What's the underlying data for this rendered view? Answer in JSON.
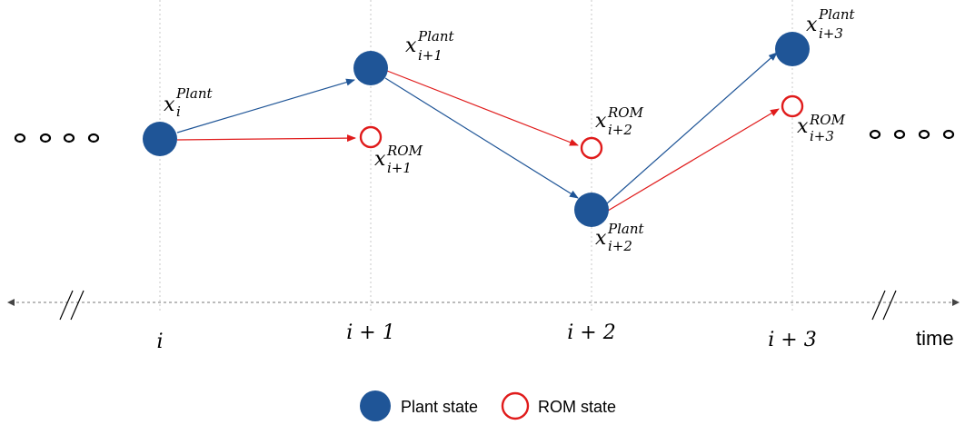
{
  "colors": {
    "plant": "#1f5597",
    "rom": "#e01b1b",
    "axis": "#777777",
    "grid": "#c8c8c8",
    "text": "#000000"
  },
  "axis": {
    "time_label": "time",
    "ticks": [
      {
        "label": "i"
      },
      {
        "label": "i + 1"
      },
      {
        "label": "i + 2"
      },
      {
        "label": "i + 3"
      }
    ],
    "break_mark": "//"
  },
  "states": [
    {
      "step": "i",
      "plant_label": {
        "base": "x",
        "sub": "i",
        "sup": "Plant"
      },
      "rom_label": null
    },
    {
      "step": "i+1",
      "plant_label": {
        "base": "x",
        "sub": "i+1",
        "sup": "Plant"
      },
      "rom_label": {
        "base": "x",
        "sub": "i+1",
        "sup": "ROM"
      }
    },
    {
      "step": "i+2",
      "plant_label": {
        "base": "x",
        "sub": "i+2",
        "sup": "Plant"
      },
      "rom_label": {
        "base": "x",
        "sub": "i+2",
        "sup": "ROM"
      }
    },
    {
      "step": "i+3",
      "plant_label": {
        "base": "x",
        "sub": "i+3",
        "sup": "Plant"
      },
      "rom_label": {
        "base": "x",
        "sub": "i+3",
        "sup": "ROM"
      }
    }
  ],
  "legend": {
    "plant": "Plant state",
    "rom": "ROM state"
  }
}
